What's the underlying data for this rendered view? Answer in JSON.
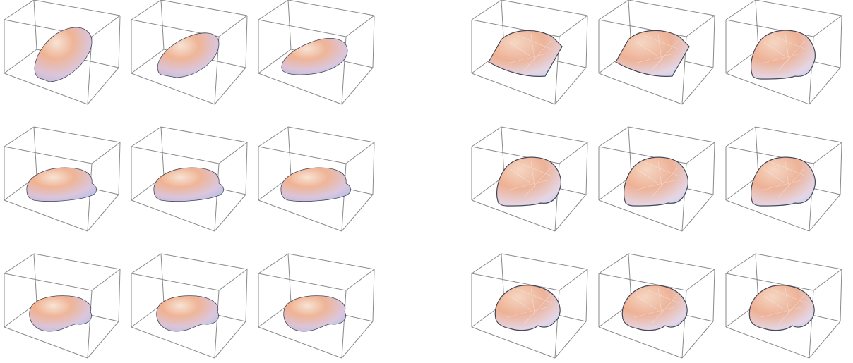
{
  "figure": {
    "description_visible_text": "",
    "palette": {
      "warm": "#f3a982",
      "light": "#fbe7d4",
      "cool": "#b7c4ee",
      "shadow": "#8f96bf",
      "edge": "#30364a",
      "box": "#8a8a8a"
    },
    "panels": [
      {
        "name": "smooth-surfaces",
        "rendering": "smooth",
        "rows": [
          [
            "ellipsoid",
            "ellipsoid-flattened",
            "ellipsoid-flat"
          ],
          [
            "bean",
            "bean",
            "bean"
          ],
          [
            "kidney",
            "kidney",
            "kidney"
          ]
        ]
      },
      {
        "name": "faceted-surfaces",
        "rendering": "faceted",
        "rows": [
          [
            "dome-square-base",
            "dome-square-base",
            "dome-lobed"
          ],
          [
            "dome-lobed",
            "dome-lobed",
            "dome-lobed"
          ],
          [
            "lumpy",
            "lumpy",
            "lumpy"
          ]
        ]
      }
    ]
  }
}
